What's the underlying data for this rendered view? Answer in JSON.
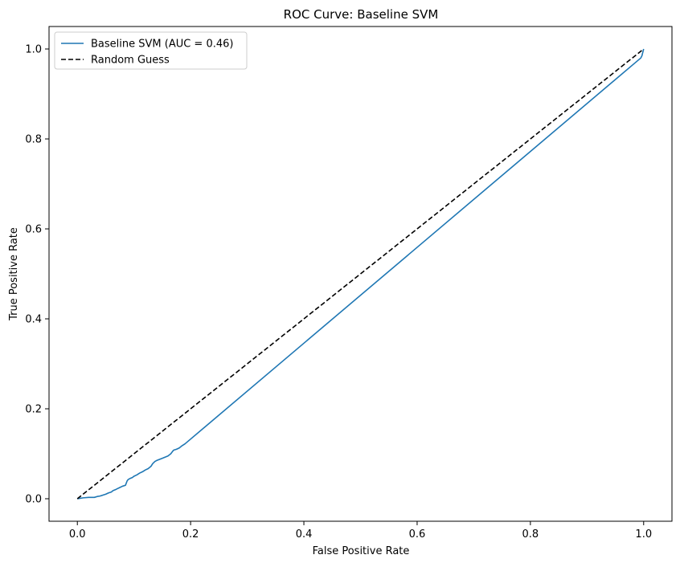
{
  "chart_data": {
    "type": "line",
    "title": "ROC Curve: Baseline SVM",
    "xlabel": "False Positive Rate",
    "ylabel": "True Positive Rate",
    "xlim": [
      -0.05,
      1.05
    ],
    "ylim": [
      -0.05,
      1.05
    ],
    "xticks": [
      0.0,
      0.2,
      0.4,
      0.6,
      0.8,
      1.0
    ],
    "yticks": [
      0.0,
      0.2,
      0.4,
      0.6,
      0.8,
      1.0
    ],
    "xtick_labels": [
      "0.0",
      "0.2",
      "0.4",
      "0.6",
      "0.8",
      "1.0"
    ],
    "ytick_labels": [
      "0.0",
      "0.2",
      "0.4",
      "0.6",
      "0.8",
      "1.0"
    ],
    "grid": false,
    "legend_position": "top-left",
    "series": [
      {
        "name": "Baseline SVM (AUC = 0.46)",
        "color": "#1f77b4",
        "style": "solid",
        "x": [
          0.0,
          0.005,
          0.01,
          0.02,
          0.03,
          0.035,
          0.04,
          0.045,
          0.05,
          0.055,
          0.06,
          0.063,
          0.067,
          0.07,
          0.075,
          0.08,
          0.085,
          0.088,
          0.09,
          0.093,
          0.097,
          0.1,
          0.105,
          0.11,
          0.115,
          0.12,
          0.125,
          0.13,
          0.133,
          0.137,
          0.14,
          0.15,
          0.16,
          0.165,
          0.168,
          0.17,
          0.175,
          0.18,
          0.185,
          0.19,
          0.995,
          0.997,
          0.998,
          0.999,
          1.0
        ],
        "y": [
          0.0,
          0.001,
          0.002,
          0.003,
          0.003,
          0.005,
          0.006,
          0.008,
          0.01,
          0.013,
          0.015,
          0.018,
          0.02,
          0.022,
          0.025,
          0.028,
          0.03,
          0.04,
          0.043,
          0.045,
          0.047,
          0.05,
          0.053,
          0.057,
          0.06,
          0.064,
          0.067,
          0.072,
          0.078,
          0.083,
          0.085,
          0.09,
          0.095,
          0.1,
          0.105,
          0.108,
          0.11,
          0.113,
          0.118,
          0.122,
          0.98,
          0.985,
          0.99,
          0.995,
          1.0
        ]
      },
      {
        "name": "Random Guess",
        "color": "#000000",
        "style": "dashed",
        "x": [
          0.0,
          1.0
        ],
        "y": [
          0.0,
          1.0
        ]
      }
    ]
  }
}
